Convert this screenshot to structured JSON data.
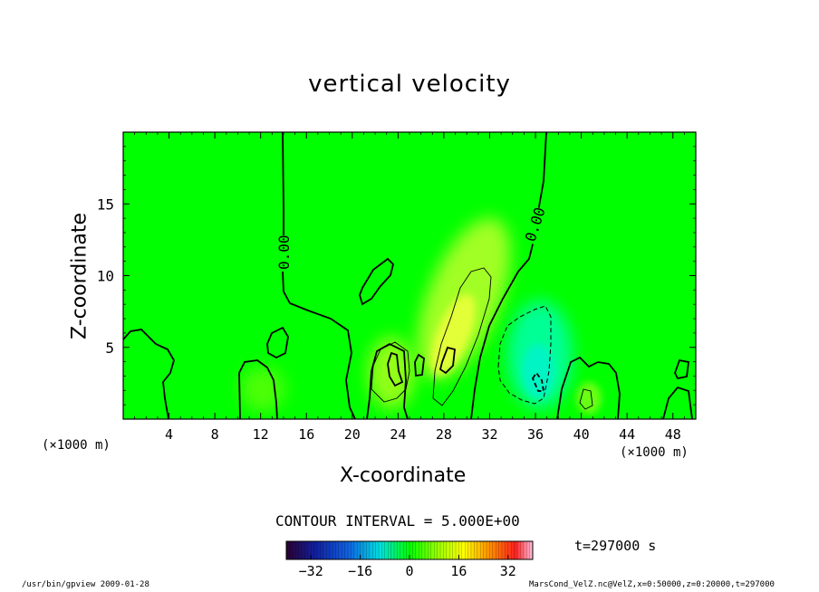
{
  "chart_data": {
    "type": "contour",
    "title": "vertical velocity",
    "xlabel": "X-coordinate",
    "ylabel": "Z-coordinate",
    "x_unit": "(×1000 m)",
    "y_unit": "(×1000 m)",
    "xlim": [
      0,
      50
    ],
    "ylim": [
      0,
      20
    ],
    "x_ticks": [
      4,
      8,
      12,
      16,
      20,
      24,
      28,
      32,
      36,
      40,
      44,
      48
    ],
    "y_ticks": [
      5,
      10,
      15
    ],
    "contour_label": "0.00",
    "contour_interval": "CONTOUR INTERVAL = 5.000E+00",
    "colorbar": {
      "ticks": [
        -32,
        -16,
        0,
        16,
        32
      ],
      "range": [
        -40,
        40
      ]
    },
    "time_label": "t=297000 s",
    "features": [
      {
        "kind": "updraft",
        "x": 29,
        "z": 6,
        "max_value": 8
      },
      {
        "kind": "updraft",
        "x": 23,
        "z": 3.5,
        "max_value": 6
      },
      {
        "kind": "downdraft",
        "x": 36,
        "z": 4,
        "min_value": -8
      }
    ]
  },
  "footer": {
    "left": "/usr/bin/gpview  2009-01-28",
    "right": "MarsCond_VelZ.nc@VelZ,x=0:50000,z=0:20000,t=297000"
  },
  "colors": {
    "background": "#00ff00",
    "updraft": "#ffff00",
    "downdraft": "#00ffc8"
  }
}
